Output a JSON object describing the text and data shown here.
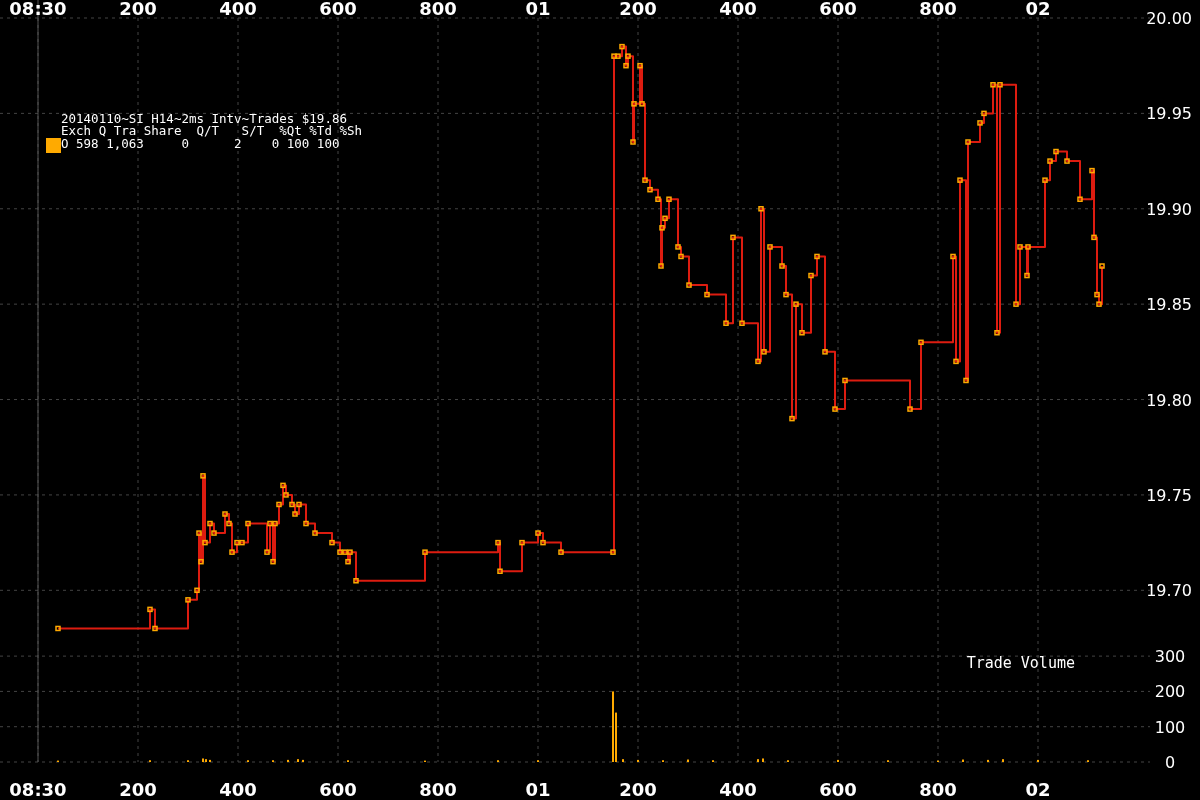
{
  "chart_data": {
    "type": "step",
    "title": "20140110~SI H14~2ms Intv~Trades $19.86",
    "subtitle": "Exch Q Tra Share  Q/T   S/T  %Qt %Td %Sh",
    "annotations": [
      "Trade Volume"
    ],
    "xlim": [
      "2014-01-10T08:29:59.924",
      "2014-01-10T08:30:02.224"
    ],
    "xticks": [
      {
        "value": "2014-01-10T08:30:00",
        "label": "08:30"
      },
      {
        "value": "2014-01-10T08:30:00.200",
        "label": "200"
      },
      {
        "value": "2014-01-10T08:30:00.400",
        "label": "400"
      },
      {
        "value": "2014-01-10T08:30:00.600",
        "label": "600"
      },
      {
        "value": "2014-01-10T08:30:00.800",
        "label": "800"
      },
      {
        "value": "2014-01-10T08:30:01",
        "label": "01"
      },
      {
        "value": "2014-01-10T08:30:01.200",
        "label": "200"
      },
      {
        "value": "2014-01-10T08:30:01.400",
        "label": "400"
      },
      {
        "value": "2014-01-10T08:30:01.600",
        "label": "600"
      },
      {
        "value": "2014-01-10T08:30:01.800",
        "label": "800"
      },
      {
        "value": "2014-01-10T08:30:02",
        "label": "02"
      }
    ],
    "x2lim": [
      "2014-01-10T08:29:59.924",
      "2014-01-10T08:30:02.224"
    ],
    "x2ticks": [
      {
        "value": "2014-01-10T08:30:00",
        "label": "08:30"
      },
      {
        "value": "2014-01-10T08:30:00.200",
        "label": "200"
      },
      {
        "value": "2014-01-10T08:30:00.400",
        "label": "400"
      },
      {
        "value": "2014-01-10T08:30:00.600",
        "label": "600"
      },
      {
        "value": "2014-01-10T08:30:00.800",
        "label": "800"
      },
      {
        "value": "2014-01-10T08:30:01",
        "label": "01"
      },
      {
        "value": "2014-01-10T08:30:01.200",
        "label": "200"
      },
      {
        "value": "2014-01-10T08:30:01.400",
        "label": "400"
      },
      {
        "value": "2014-01-10T08:30:01.600",
        "label": "600"
      },
      {
        "value": "2014-01-10T08:30:01.800",
        "label": "800"
      },
      {
        "value": "2014-01-10T08:30:02",
        "label": "02"
      }
    ],
    "ylim": [
      19.61,
      20.0
    ],
    "yticks": [
      {
        "value": 19.7,
        "label": "19.70"
      },
      19.75,
      {
        "value": 19.8,
        "label": "19.80"
      },
      19.85,
      {
        "value": 19.9,
        "label": "19.90"
      },
      19.95,
      {
        "value": 20,
        "label": "20.00"
      }
    ],
    "y2lim": [
      0,
      2108
    ],
    "y2ticks": [
      0,
      100,
      200,
      300
    ],
    "grid": true,
    "legend": "top left",
    "line_style": "solid",
    "ref_lines": [
      {
        "axis": "x",
        "value": "2014-01-10T08:30:00",
        "color": "#555555"
      }
    ],
    "x": [
      "2014-01-10T08:30:00.040",
      "2014-01-10T08:30:00.224",
      "2014-01-10T08:30:00.234",
      "2014-01-10T08:30:00.300",
      "2014-01-10T08:30:00.318",
      "2014-01-10T08:30:00.322",
      "2014-01-10T08:30:00.326",
      "2014-01-10T08:30:00.330",
      "2014-01-10T08:30:00.334",
      "2014-01-10T08:30:00.344",
      "2014-01-10T08:30:00.352",
      "2014-01-10T08:30:00.374",
      "2014-01-10T08:30:00.382",
      "2014-01-10T08:30:00.388",
      "2014-01-10T08:30:00.398",
      "2014-01-10T08:30:00.408",
      "2014-01-10T08:30:00.420",
      "2014-01-10T08:30:00.458",
      "2014-01-10T08:30:00.464",
      "2014-01-10T08:30:00.470",
      "2014-01-10T08:30:00.474",
      "2014-01-10T08:30:00.482",
      "2014-01-10T08:30:00.490",
      "2014-01-10T08:30:00.496",
      "2014-01-10T08:30:00.508",
      "2014-01-10T08:30:00.514",
      "2014-01-10T08:30:00.522",
      "2014-01-10T08:30:00.536",
      "2014-01-10T08:30:00.554",
      "2014-01-10T08:30:00.588",
      "2014-01-10T08:30:00.604",
      "2014-01-10T08:30:00.614",
      "2014-01-10T08:30:00.620",
      "2014-01-10T08:30:00.624",
      "2014-01-10T08:30:00.636",
      "2014-01-10T08:30:00.774",
      "2014-01-10T08:30:00.920",
      "2014-01-10T08:30:00.924",
      "2014-01-10T08:30:00.968",
      "2014-01-10T08:30:01.000",
      "2014-01-10T08:30:01.010",
      "2014-01-10T08:30:01.046",
      "2014-01-10T08:30:01.150",
      "2014-01-10T08:30:01.152",
      "2014-01-10T08:30:01.160",
      "2014-01-10T08:30:01.168",
      "2014-01-10T08:30:01.176",
      "2014-01-10T08:30:01.180",
      "2014-01-10T08:30:01.190",
      "2014-01-10T08:30:01.192",
      "2014-01-10T08:30:01.204",
      "2014-01-10T08:30:01.208",
      "2014-01-10T08:30:01.214",
      "2014-01-10T08:30:01.224",
      "2014-01-10T08:30:01.240",
      "2014-01-10T08:30:01.246",
      "2014-01-10T08:30:01.248",
      "2014-01-10T08:30:01.254",
      "2014-01-10T08:30:01.262",
      "2014-01-10T08:30:01.280",
      "2014-01-10T08:30:01.286",
      "2014-01-10T08:30:01.302",
      "2014-01-10T08:30:01.338",
      "2014-01-10T08:30:01.376",
      "2014-01-10T08:30:01.390",
      "2014-01-10T08:30:01.408",
      "2014-01-10T08:30:01.440",
      "2014-01-10T08:30:01.446",
      "2014-01-10T08:30:01.452",
      "2014-01-10T08:30:01.464",
      "2014-01-10T08:30:01.488",
      "2014-01-10T08:30:01.496",
      "2014-01-10T08:30:01.508",
      "2014-01-10T08:30:01.516",
      "2014-01-10T08:30:01.528",
      "2014-01-10T08:30:01.546",
      "2014-01-10T08:30:01.558",
      "2014-01-10T08:30:01.574",
      "2014-01-10T08:30:01.594",
      "2014-01-10T08:30:01.614",
      "2014-01-10T08:30:01.744",
      "2014-01-10T08:30:01.766",
      "2014-01-10T08:30:01.830",
      "2014-01-10T08:30:01.836",
      "2014-01-10T08:30:01.844",
      "2014-01-10T08:30:01.856",
      "2014-01-10T08:30:01.860",
      "2014-01-10T08:30:01.884",
      "2014-01-10T08:30:01.892",
      "2014-01-10T08:30:01.910",
      "2014-01-10T08:30:01.918",
      "2014-01-10T08:30:01.924",
      "2014-01-10T08:30:01.956",
      "2014-01-10T08:30:01.964",
      "2014-01-10T08:30:01.978",
      "2014-01-10T08:30:01.980",
      "2014-01-10T08:30:02.014",
      "2014-01-10T08:30:02.024",
      "2014-01-10T08:30:02.036",
      "2014-01-10T08:30:02.058",
      "2014-01-10T08:30:02.084",
      "2014-01-10T08:30:02.108",
      "2014-01-10T08:30:02.112",
      "2014-01-10T08:30:02.118",
      "2014-01-10T08:30:02.122",
      "2014-01-10T08:30:02.128"
    ],
    "series": [
      {
        "color": "#dd1c10",
        "values": [
          19.68,
          19.69,
          19.68,
          19.695,
          19.7,
          19.73,
          19.715,
          19.76,
          19.725,
          19.735,
          19.73,
          19.74,
          19.735,
          19.72,
          19.725,
          19.725,
          19.735,
          19.72,
          19.735,
          19.715,
          19.735,
          19.745,
          19.755,
          19.75,
          19.745,
          19.74,
          19.745,
          19.735,
          19.73,
          19.725,
          19.72,
          19.72,
          19.715,
          19.72,
          19.705,
          19.72,
          19.725,
          19.71,
          19.725,
          19.73,
          19.725,
          19.72,
          19.72,
          19.98,
          19.98,
          19.985,
          19.975,
          19.98,
          19.935,
          19.955,
          19.975,
          19.955,
          19.915,
          19.91,
          19.905,
          19.87,
          19.89,
          19.895,
          19.905,
          19.88,
          19.875,
          19.86,
          19.855,
          19.84,
          19.885,
          19.84,
          19.82,
          19.9,
          19.825,
          19.88,
          19.87,
          19.855,
          19.79,
          19.85,
          19.835,
          19.865,
          19.875,
          19.825,
          19.795,
          19.81,
          19.795,
          19.83,
          19.875,
          19.82,
          19.915,
          19.81,
          19.935,
          19.945,
          19.95,
          19.965,
          19.835,
          19.965,
          19.85,
          19.88,
          19.865,
          19.88,
          19.915,
          19.925,
          19.93,
          19.925,
          19.905,
          19.92,
          19.885,
          19.855,
          19.85,
          19.87
        ]
      },
      {
        "type": "scatter",
        "name": "O 598 1,063     0      2    0 100 100",
        "color": "#ffaa00",
        "marker": "square",
        "values": [
          19.68,
          19.69,
          19.68,
          19.695,
          19.7,
          19.73,
          19.715,
          19.76,
          19.725,
          19.735,
          19.73,
          19.74,
          19.735,
          19.72,
          19.725,
          19.725,
          19.735,
          19.72,
          19.735,
          19.715,
          19.735,
          19.745,
          19.755,
          19.75,
          19.745,
          19.74,
          19.745,
          19.735,
          19.73,
          19.725,
          19.72,
          19.72,
          19.715,
          19.72,
          19.705,
          19.72,
          19.725,
          19.71,
          19.725,
          19.73,
          19.725,
          19.72,
          19.72,
          19.98,
          19.98,
          19.985,
          19.975,
          19.98,
          19.935,
          19.955,
          19.975,
          19.955,
          19.915,
          19.91,
          19.905,
          19.87,
          19.89,
          19.895,
          19.905,
          19.88,
          19.875,
          19.86,
          19.855,
          19.84,
          19.885,
          19.84,
          19.82,
          19.9,
          19.825,
          19.88,
          19.87,
          19.855,
          19.79,
          19.85,
          19.835,
          19.865,
          19.875,
          19.825,
          19.795,
          19.81,
          19.795,
          19.83,
          19.875,
          19.82,
          19.915,
          19.81,
          19.935,
          19.945,
          19.95,
          19.965,
          19.835,
          19.965,
          19.85,
          19.88,
          19.865,
          19.88,
          19.915,
          19.925,
          19.93,
          19.925,
          19.905,
          19.92,
          19.885,
          19.855,
          19.85,
          19.87
        ]
      },
      {
        "type": "bar",
        "axis": "y2",
        "color": "#ffaa00",
        "x": [
          "2014-01-10T08:30:00.040",
          "2014-01-10T08:30:00.224",
          "2014-01-10T08:30:00.300",
          "2014-01-10T08:30:00.330",
          "2014-01-10T08:30:00.336",
          "2014-01-10T08:30:00.344",
          "2014-01-10T08:30:00.420",
          "2014-01-10T08:30:00.470",
          "2014-01-10T08:30:00.500",
          "2014-01-10T08:30:00.520",
          "2014-01-10T08:30:00.530",
          "2014-01-10T08:30:00.620",
          "2014-01-10T08:30:00.774",
          "2014-01-10T08:30:00.920",
          "2014-01-10T08:30:01.000",
          "2014-01-10T08:30:01.150",
          "2014-01-10T08:30:01.154",
          "2014-01-10T08:30:01.156",
          "2014-01-10T08:30:01.170",
          "2014-01-10T08:30:01.200",
          "2014-01-10T08:30:01.250",
          "2014-01-10T08:30:01.300",
          "2014-01-10T08:30:01.350",
          "2014-01-10T08:30:01.440",
          "2014-01-10T08:30:01.450",
          "2014-01-10T08:30:01.500",
          "2014-01-10T08:30:01.600",
          "2014-01-10T08:30:01.700",
          "2014-01-10T08:30:01.800",
          "2014-01-10T08:30:01.850",
          "2014-01-10T08:30:01.900",
          "2014-01-10T08:30:01.930",
          "2014-01-10T08:30:02.000",
          "2014-01-10T08:30:02.100"
        ],
        "values": [
          4,
          5,
          5,
          10,
          8,
          6,
          5,
          5,
          6,
          8,
          6,
          5,
          4,
          5,
          5,
          200,
          null,
          140,
          8,
          6,
          5,
          7,
          5,
          8,
          10,
          5,
          6,
          5,
          4,
          7,
          6,
          8,
          6,
          5
        ]
      }
    ]
  }
}
